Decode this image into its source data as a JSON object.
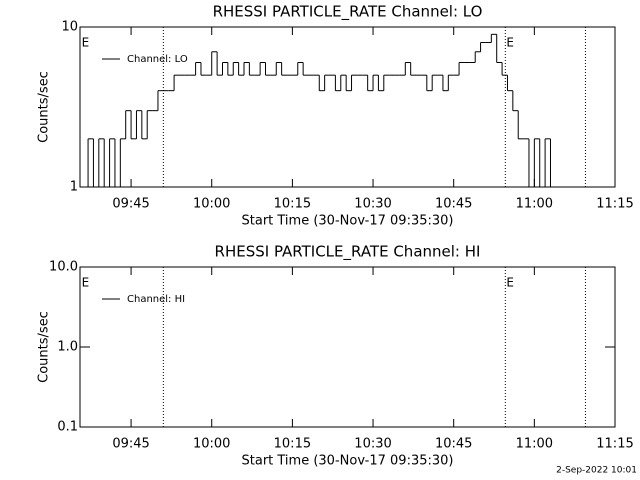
{
  "chart_data": [
    {
      "type": "line",
      "title": "RHESSI PARTICLE_RATE Channel: LO",
      "xlabel": "Start Time (30-Nov-17 09:35:30)",
      "ylabel": "Counts/sec",
      "log_y": true,
      "legend": "upper left",
      "xlim": [
        575.5,
        675
      ],
      "ylim": [
        1,
        10
      ],
      "xticks": [
        {
          "value": 585,
          "label": "09:45"
        },
        {
          "value": 600,
          "label": "10:00"
        },
        {
          "value": 615,
          "label": "10:15"
        },
        {
          "value": 630,
          "label": "10:30"
        },
        {
          "value": 645,
          "label": "10:45"
        },
        {
          "value": 660,
          "label": "11:00"
        },
        {
          "value": 675,
          "label": "11:15"
        }
      ],
      "yticks": [
        1,
        10
      ],
      "vlines": [
        591,
        654.6,
        669.5
      ],
      "annotations": [
        {
          "text": "E",
          "x": 575.8
        },
        {
          "text": "E",
          "x": 654.8
        }
      ],
      "x": [
        576,
        577,
        578,
        579,
        580,
        581,
        582,
        583,
        584,
        585,
        586,
        587,
        588,
        589,
        590,
        591,
        592,
        593,
        594,
        595,
        596,
        597,
        598,
        599,
        600,
        601,
        602,
        603,
        604,
        605,
        606,
        607,
        608,
        609,
        610,
        611,
        612,
        613,
        614,
        615,
        616,
        617,
        618,
        619,
        620,
        621,
        622,
        623,
        624,
        625,
        626,
        627,
        628,
        629,
        630,
        631,
        632,
        633,
        634,
        635,
        636,
        637,
        638,
        639,
        640,
        641,
        642,
        643,
        644,
        645,
        646,
        647,
        648,
        649,
        650,
        651,
        652,
        653,
        654,
        655,
        656,
        657,
        658,
        659,
        660,
        661,
        662,
        663,
        664
      ],
      "series": [
        {
          "name": "Channel: LO",
          "color": "#000000",
          "values": [
            1,
            2,
            1,
            2,
            1,
            2,
            1,
            2,
            3,
            2,
            3,
            2,
            3,
            3,
            4,
            4,
            4,
            5,
            5,
            5,
            5,
            6,
            5,
            5,
            7,
            5,
            6,
            5,
            6,
            5,
            6,
            5,
            5,
            6,
            5,
            5,
            6,
            5,
            5,
            5,
            6,
            5,
            5,
            5,
            4,
            5,
            5,
            4,
            5,
            4,
            5,
            5,
            5,
            4,
            5,
            4,
            5,
            5,
            5,
            5,
            6,
            5,
            5,
            5,
            4,
            5,
            5,
            4,
            5,
            5,
            6,
            6,
            6,
            7,
            8,
            8,
            9,
            6,
            5,
            4,
            3,
            2,
            2,
            1,
            2,
            1,
            2,
            1,
            1
          ]
        }
      ]
    },
    {
      "type": "line",
      "title": "RHESSI PARTICLE_RATE Channel: HI",
      "xlabel": "Start Time (30-Nov-17 09:35:30)",
      "ylabel": "Counts/sec",
      "log_y": true,
      "legend": "upper left",
      "xlim": [
        575.5,
        675
      ],
      "ylim": [
        0.1,
        10
      ],
      "xticks": [
        {
          "value": 585,
          "label": "09:45"
        },
        {
          "value": 600,
          "label": "10:00"
        },
        {
          "value": 615,
          "label": "10:15"
        },
        {
          "value": 630,
          "label": "10:30"
        },
        {
          "value": 645,
          "label": "10:45"
        },
        {
          "value": 660,
          "label": "11:00"
        },
        {
          "value": 675,
          "label": "11:15"
        }
      ],
      "yticks": [
        0.1,
        {
          "value": 1,
          "label": "1.0"
        },
        {
          "value": 10,
          "label": "10.0"
        }
      ],
      "vlines": [
        591,
        654.6,
        669.5
      ],
      "annotations": [
        {
          "text": "E",
          "x": 575.8
        },
        {
          "text": "E",
          "x": 654.8
        }
      ],
      "x": [],
      "series": [
        {
          "name": "Channel: HI",
          "color": "#000000",
          "values": []
        }
      ]
    }
  ],
  "footer": "2-Sep-2022 10:01"
}
